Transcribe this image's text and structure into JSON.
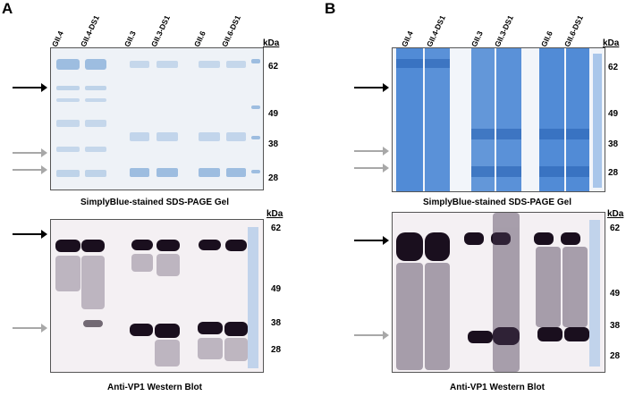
{
  "figure": {
    "panels": [
      {
        "letter": "A",
        "lanes": [
          "GII.4",
          "GII.4-DS1",
          "GII.3",
          "GII.3-DS1",
          "GII.6",
          "GII.6-DS1"
        ],
        "kda_label": "kDa",
        "gel": {
          "caption": "SimplyBlue-stained SDS-PAGE Gel",
          "markers": [
            "62",
            "49",
            "38",
            "28"
          ]
        },
        "blot": {
          "caption": "Anti-VP1 Western Blot",
          "markers": [
            "62",
            "49",
            "38",
            "28"
          ]
        }
      },
      {
        "letter": "B",
        "lanes": [
          "GII.4",
          "GII.4-DS1",
          "GII.3",
          "GII.3-DS1",
          "GII.6",
          "GII.6-DS1"
        ],
        "kda_label": "kDa",
        "gel": {
          "caption": "SimplyBlue-stained SDS-PAGE Gel",
          "markers": [
            "62",
            "49",
            "38",
            "28"
          ]
        },
        "blot": {
          "caption": "Anti-VP1 Western Blot",
          "markers": [
            "62",
            "49",
            "38",
            "28"
          ]
        }
      }
    ],
    "colors": {
      "gel_light_background": "#eef2f7",
      "gel_light_band": "#8fb4dc",
      "gel_dark_background": "#f2f5fa",
      "gel_dark_band": "#3f7fd1",
      "blot_background": "#f4f0f3",
      "blot_band": "#1a0f1e",
      "ladder": "#9fc0e6",
      "arrow_black": "#000000",
      "arrow_gray": "#a8a8a8"
    }
  }
}
